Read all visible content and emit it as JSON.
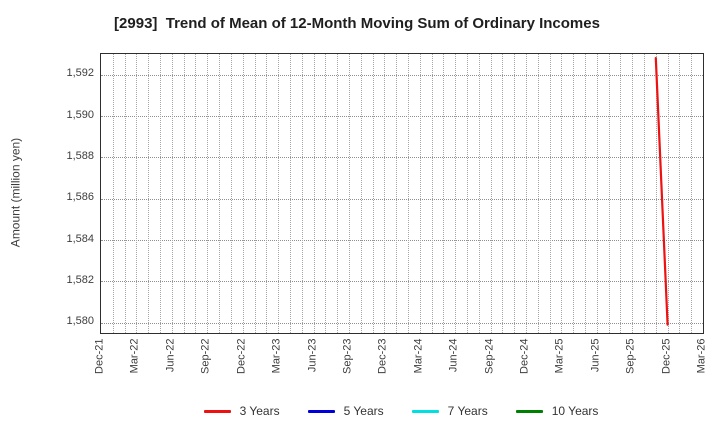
{
  "window": {
    "title": "[2993]  Trend of Mean of 12-Month Moving Sum of Ordinary Incomes"
  },
  "chart_data": {
    "type": "line",
    "title": "[2993]  Trend of Mean of 12-Month Moving Sum of Ordinary Incomes",
    "xlabel": "",
    "ylabel": "Amount (million yen)",
    "ylim": [
      1579.5,
      1593.0
    ],
    "x_months_total": 51,
    "x_tick_month_step": 3,
    "x_tick_labels": [
      "Dec-21",
      "Mar-22",
      "Jun-22",
      "Sep-22",
      "Dec-22",
      "Mar-23",
      "Jun-23",
      "Sep-23",
      "Dec-23",
      "Mar-24",
      "Jun-24",
      "Sep-24",
      "Dec-24",
      "Mar-25",
      "Jun-25",
      "Sep-25",
      "Dec-25",
      "Mar-26"
    ],
    "y_ticks": [
      {
        "label": "1,580",
        "value": 1580
      },
      {
        "label": "1,582",
        "value": 1582
      },
      {
        "label": "1,584",
        "value": 1584
      },
      {
        "label": "1,586",
        "value": 1586
      },
      {
        "label": "1,588",
        "value": 1588
      },
      {
        "label": "1,590",
        "value": 1590
      },
      {
        "label": "1,592",
        "value": 1592
      }
    ],
    "grid": {
      "style": "dotted",
      "horizontal": true,
      "vertical_every_months": 1
    },
    "legend_position": "bottom",
    "series": [
      {
        "name": "3 Years",
        "color": "#ee1111",
        "points": [
          {
            "x_label": "Nov-25",
            "month_index": 47,
            "value": 1592.8
          },
          {
            "x_label": "Dec-25",
            "month_index": 48,
            "value": 1579.9
          }
        ]
      },
      {
        "name": "5 Years",
        "color": "#0000dd",
        "points": []
      },
      {
        "name": "7 Years",
        "color": "#00e0e0",
        "points": []
      },
      {
        "name": "10 Years",
        "color": "#008000",
        "points": []
      }
    ]
  }
}
